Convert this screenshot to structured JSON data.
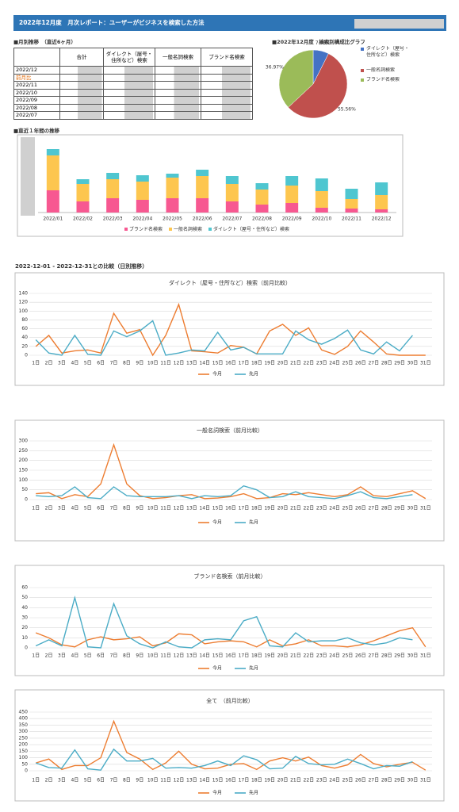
{
  "header": {
    "title": "2022年12月度　月次レポート：ユーザーがビジネスを検索した方法"
  },
  "table": {
    "title": "■月別推移　（直近6ヶ月）",
    "columns": [
      "合計",
      "ダイレクト（屋号・住所など）検索",
      "一般名詞検索",
      "ブランド名検索"
    ],
    "rows": [
      "2022/12",
      "前月比",
      "2022/11",
      "2022/10",
      "2022/09",
      "2022/08",
      "2022/07"
    ]
  },
  "section_title": "2022-12-01 - 2022-12-31との比較（日別推移）",
  "chart_data": [
    {
      "type": "pie",
      "title": "■2022年12月度　検索別構成比グラフ",
      "categories": [
        "ダイレクト（屋号・住所など）検索",
        "一般名詞検索",
        "ブランド名検索"
      ],
      "values": [
        7.46,
        55.56,
        36.97
      ],
      "value_labels": [
        "7.46%",
        "55.56%",
        "36.97%"
      ],
      "colors": [
        "#4472c4",
        "#c0504d",
        "#9bbb59"
      ]
    },
    {
      "type": "bar",
      "stacked": true,
      "title": "■直近１年間の推移",
      "categories": [
        "2022/01",
        "2022/02",
        "2022/03",
        "2022/04",
        "2022/05",
        "2022/06",
        "2022/07",
        "2022/08",
        "2022/09",
        "2022/10",
        "2022/11",
        "2022/12"
      ],
      "ylim": [
        0,
        90
      ],
      "series": [
        {
          "name": "ブランド名検索",
          "color": "#f75891",
          "values": [
            28,
            14,
            18,
            16,
            18,
            18,
            14,
            10,
            12,
            6,
            5,
            4
          ]
        },
        {
          "name": "一般名詞検索",
          "color": "#fdc64f",
          "values": [
            44,
            22,
            24,
            23,
            26,
            28,
            22,
            19,
            22,
            21,
            12,
            18
          ]
        },
        {
          "name": "ダイレクト（屋号・住所など）検索",
          "color": "#4fc6d0",
          "values": [
            8,
            6,
            8,
            8,
            5,
            8,
            10,
            8,
            12,
            16,
            13,
            16
          ]
        }
      ]
    },
    {
      "type": "line",
      "title": "ダイレクト（屋号・住所など）検索（前月比較）",
      "categories": [
        "1日",
        "2日",
        "3日",
        "4日",
        "5日",
        "6日",
        "7日",
        "8日",
        "9日",
        "10日",
        "11日",
        "12日",
        "13日",
        "14日",
        "15日",
        "16日",
        "17日",
        "18日",
        "19日",
        "20日",
        "21日",
        "22日",
        "23日",
        "24日",
        "25日",
        "26日",
        "27日",
        "28日",
        "29日",
        "30日",
        "31日"
      ],
      "ylim": [
        0,
        140
      ],
      "yticks": [
        0,
        20,
        40,
        60,
        80,
        100,
        120,
        140
      ],
      "grid": true,
      "series": [
        {
          "name": "今月",
          "color": "#ed7d31",
          "values": [
            20,
            45,
            5,
            10,
            12,
            5,
            95,
            50,
            58,
            0,
            45,
            115,
            10,
            8,
            5,
            22,
            18,
            3,
            55,
            70,
            45,
            62,
            12,
            2,
            20,
            55,
            30,
            3,
            0,
            0,
            0
          ]
        },
        {
          "name": "先月",
          "color": "#4bacc6",
          "values": [
            35,
            5,
            0,
            45,
            2,
            0,
            55,
            42,
            55,
            78,
            0,
            5,
            12,
            10,
            52,
            12,
            18,
            3,
            3,
            3,
            55,
            35,
            25,
            38,
            57,
            12,
            3,
            30,
            10,
            45,
            null
          ]
        }
      ]
    },
    {
      "type": "line",
      "title": "一般名詞検索（前月比較）",
      "categories": [
        "1日",
        "2日",
        "3日",
        "4日",
        "5日",
        "6日",
        "7日",
        "8日",
        "9日",
        "10日",
        "11日",
        "12日",
        "13日",
        "14日",
        "15日",
        "16日",
        "17日",
        "18日",
        "19日",
        "20日",
        "21日",
        "22日",
        "23日",
        "24日",
        "25日",
        "26日",
        "27日",
        "28日",
        "29日",
        "30日",
        "31日"
      ],
      "ylim": [
        0,
        300
      ],
      "yticks": [
        0,
        50,
        100,
        150,
        200,
        250,
        300
      ],
      "grid": true,
      "series": [
        {
          "name": "今月",
          "color": "#ed7d31",
          "values": [
            30,
            35,
            5,
            25,
            15,
            80,
            280,
            80,
            20,
            5,
            10,
            20,
            25,
            5,
            8,
            15,
            30,
            5,
            10,
            30,
            25,
            35,
            25,
            15,
            25,
            65,
            20,
            15,
            30,
            45,
            5
          ]
        },
        {
          "name": "先月",
          "color": "#4bacc6",
          "values": [
            20,
            15,
            20,
            65,
            10,
            5,
            65,
            20,
            15,
            15,
            15,
            20,
            5,
            20,
            15,
            20,
            70,
            50,
            10,
            15,
            40,
            15,
            10,
            5,
            20,
            40,
            10,
            5,
            15,
            25,
            null
          ]
        }
      ]
    },
    {
      "type": "line",
      "title": "ブランド名検索（前月比較）",
      "categories": [
        "1日",
        "2日",
        "3日",
        "4日",
        "5日",
        "6日",
        "7日",
        "8日",
        "9日",
        "10日",
        "11日",
        "12日",
        "13日",
        "14日",
        "15日",
        "16日",
        "17日",
        "18日",
        "19日",
        "20日",
        "21日",
        "22日",
        "23日",
        "24日",
        "25日",
        "26日",
        "27日",
        "28日",
        "29日",
        "30日",
        "31日"
      ],
      "ylim": [
        0,
        60
      ],
      "yticks": [
        0,
        10,
        20,
        30,
        40,
        50,
        60
      ],
      "grid": true,
      "series": [
        {
          "name": "今月",
          "color": "#ed7d31",
          "values": [
            15,
            10,
            3,
            1,
            8,
            11,
            8,
            9,
            11,
            2,
            5,
            14,
            13,
            4,
            6,
            7,
            6,
            1,
            8,
            2,
            4,
            8,
            2,
            2,
            1,
            3,
            7,
            12,
            17,
            20,
            1
          ]
        },
        {
          "name": "先月",
          "color": "#4bacc6",
          "values": [
            2,
            8,
            2,
            50,
            1,
            0,
            44,
            12,
            4,
            0,
            6,
            1,
            0,
            8,
            9,
            8,
            27,
            31,
            2,
            1,
            15,
            6,
            7,
            7,
            10,
            5,
            3,
            5,
            10,
            8,
            null
          ]
        }
      ]
    },
    {
      "type": "line",
      "title": "全て　（前月比較）",
      "categories": [
        "1日",
        "2日",
        "3日",
        "4日",
        "5日",
        "6日",
        "7日",
        "8日",
        "9日",
        "10日",
        "11日",
        "12日",
        "13日",
        "14日",
        "15日",
        "16日",
        "17日",
        "18日",
        "19日",
        "20日",
        "21日",
        "22日",
        "23日",
        "24日",
        "25日",
        "26日",
        "27日",
        "28日",
        "29日",
        "30日",
        "31日"
      ],
      "ylim": [
        0,
        450
      ],
      "yticks": [
        0,
        50,
        100,
        150,
        200,
        250,
        300,
        350,
        400,
        450
      ],
      "grid": true,
      "series": [
        {
          "name": "今月",
          "color": "#ed7d31",
          "values": [
            60,
            90,
            10,
            40,
            40,
            100,
            380,
            140,
            90,
            10,
            60,
            150,
            50,
            15,
            20,
            50,
            55,
            10,
            75,
            100,
            75,
            105,
            40,
            20,
            45,
            125,
            55,
            30,
            50,
            65,
            5
          ]
        },
        {
          "name": "先月",
          "color": "#4bacc6",
          "values": [
            60,
            25,
            20,
            160,
            15,
            5,
            165,
            75,
            75,
            95,
            20,
            25,
            20,
            40,
            75,
            40,
            115,
            85,
            15,
            20,
            110,
            55,
            45,
            50,
            90,
            55,
            15,
            40,
            35,
            70,
            null
          ]
        }
      ]
    }
  ]
}
